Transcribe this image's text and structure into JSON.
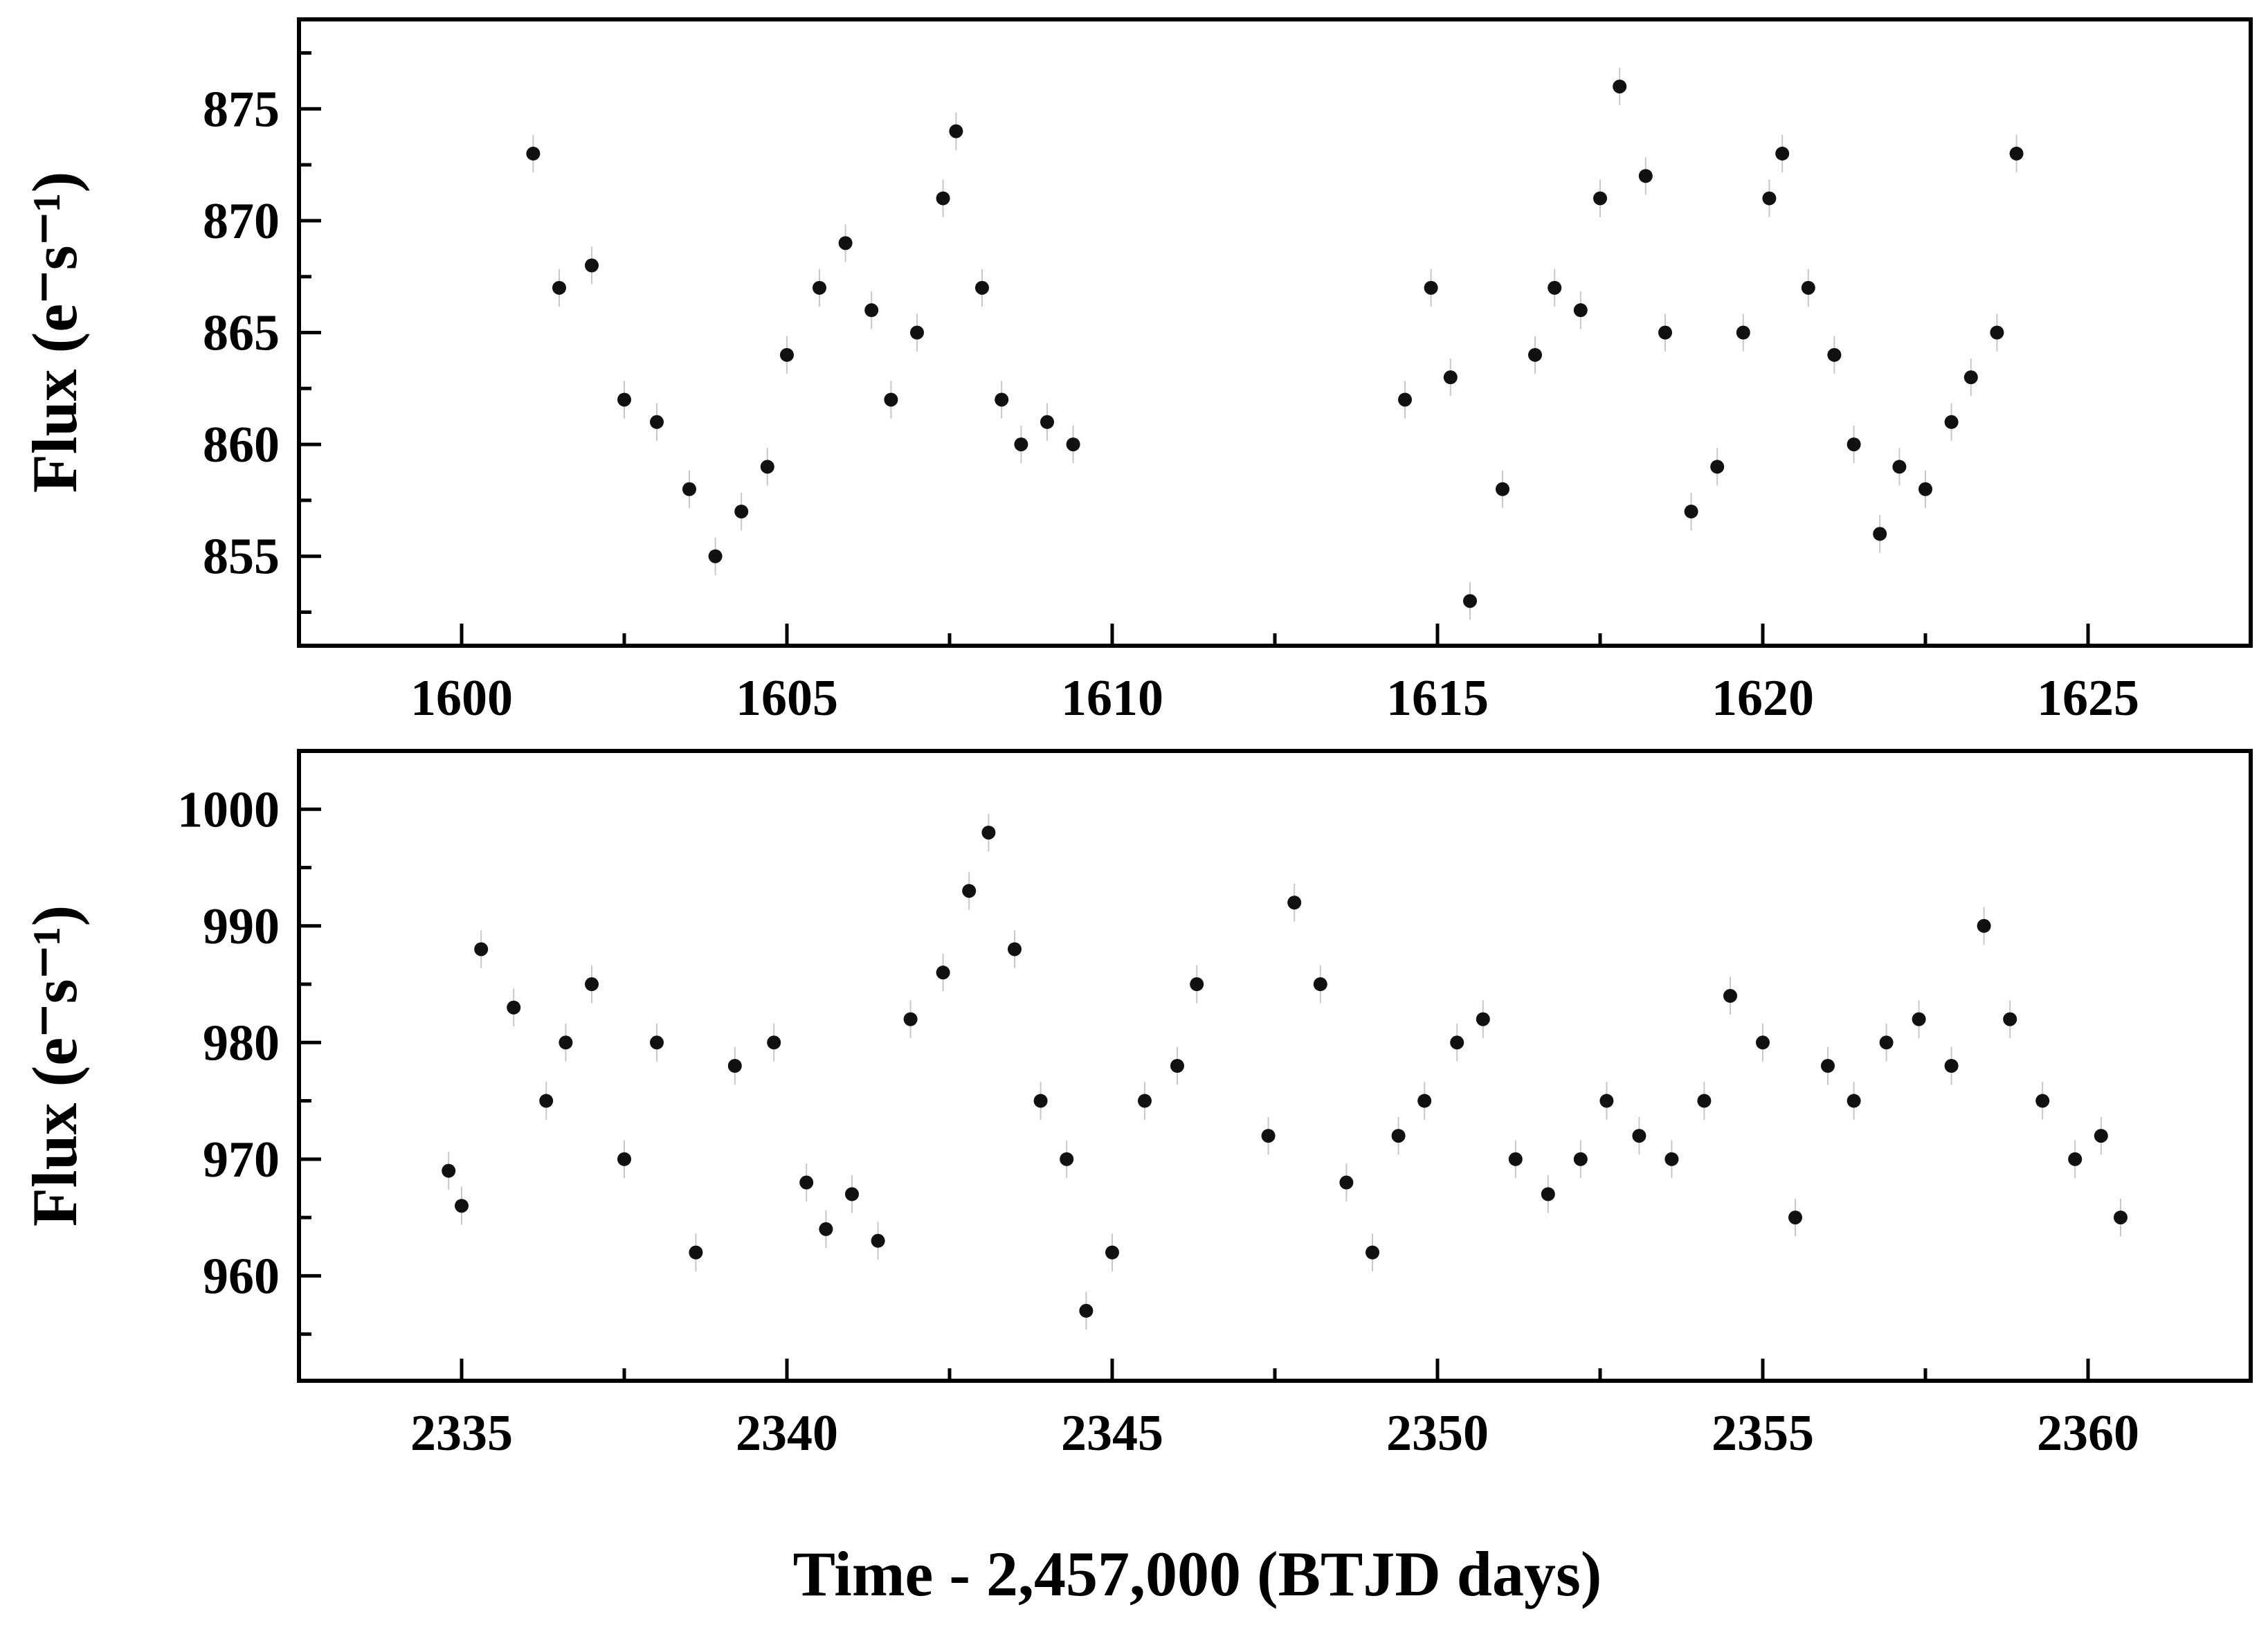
{
  "chart_data": [
    {
      "type": "scatter",
      "title": "",
      "xlabel": "",
      "ylabel": "Flux (e⁻s⁻¹)",
      "xlim": [
        1597.5,
        1627.5
      ],
      "ylim": [
        851,
        879
      ],
      "xticks": [
        "1600",
        "1605",
        "1610",
        "1615",
        "1620",
        "1625"
      ],
      "yticks": [
        "855",
        "860",
        "865",
        "870",
        "875"
      ],
      "grid": false,
      "legend": "none",
      "marker_color": "#111111",
      "errorbar_color": "#c8c8c8",
      "x": [
        1601.1,
        1601.5,
        1602.0,
        1602.5,
        1603.0,
        1603.5,
        1603.9,
        1604.3,
        1604.7,
        1605.0,
        1605.5,
        1605.9,
        1606.3,
        1606.6,
        1607.0,
        1607.4,
        1607.6,
        1608.0,
        1608.3,
        1608.6,
        1609.0,
        1609.4,
        1614.5,
        1614.9,
        1615.2,
        1615.5,
        1616.0,
        1616.5,
        1616.8,
        1617.2,
        1617.5,
        1617.8,
        1618.2,
        1618.5,
        1618.9,
        1619.3,
        1619.7,
        1620.1,
        1620.3,
        1620.7,
        1621.1,
        1621.4,
        1621.8,
        1622.1,
        1622.5,
        1622.9,
        1623.2,
        1623.6,
        1623.9
      ],
      "y": [
        873,
        867,
        868,
        862,
        861,
        858,
        855,
        857,
        859,
        864,
        867,
        869,
        866,
        862,
        865,
        871,
        874,
        867,
        862,
        860,
        861,
        860,
        862,
        867,
        863,
        853,
        858,
        864,
        867,
        866,
        871,
        876,
        872,
        865,
        857,
        859,
        865,
        871,
        873,
        867,
        864,
        860,
        856,
        859,
        858,
        861,
        863,
        865,
        873
      ]
    },
    {
      "type": "scatter",
      "title": "",
      "xlabel": "Time - 2,457,000 (BTJD days)",
      "ylabel": "Flux (e⁻s⁻¹)",
      "xlim": [
        2332.5,
        2362.5
      ],
      "ylim": [
        951,
        1005
      ],
      "xticks": [
        "2335",
        "2340",
        "2345",
        "2350",
        "2355",
        "2360"
      ],
      "yticks": [
        "960",
        "970",
        "980",
        "990",
        "1000"
      ],
      "grid": false,
      "legend": "none",
      "marker_color": "#111111",
      "errorbar_color": "#c8c8c8",
      "x": [
        2334.8,
        2335.0,
        2335.3,
        2335.8,
        2336.3,
        2336.6,
        2337.0,
        2337.5,
        2338.0,
        2338.6,
        2339.2,
        2339.8,
        2340.3,
        2340.6,
        2341.0,
        2341.4,
        2341.9,
        2342.4,
        2342.8,
        2343.1,
        2343.5,
        2343.9,
        2344.3,
        2344.6,
        2345.0,
        2345.5,
        2346.0,
        2346.3,
        2347.4,
        2347.8,
        2348.2,
        2348.6,
        2349.0,
        2349.4,
        2349.8,
        2350.3,
        2350.7,
        2351.2,
        2351.7,
        2352.2,
        2352.6,
        2353.1,
        2353.6,
        2354.1,
        2354.5,
        2355.0,
        2355.5,
        2356.0,
        2356.4,
        2356.9,
        2357.4,
        2357.9,
        2358.4,
        2358.8,
        2359.3,
        2359.8,
        2360.2,
        2360.5
      ],
      "y": [
        969,
        966,
        988,
        983,
        975,
        980,
        985,
        970,
        980,
        962,
        978,
        980,
        968,
        964,
        967,
        963,
        982,
        986,
        993,
        998,
        988,
        975,
        970,
        957,
        962,
        975,
        978,
        985,
        972,
        992,
        985,
        968,
        962,
        972,
        975,
        980,
        982,
        970,
        967,
        970,
        975,
        972,
        970,
        975,
        984,
        980,
        965,
        978,
        975,
        980,
        982,
        978,
        990,
        982,
        975,
        970,
        972,
        965
      ]
    }
  ]
}
